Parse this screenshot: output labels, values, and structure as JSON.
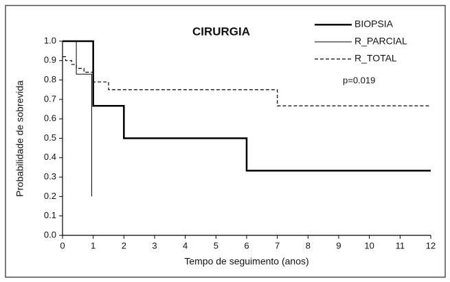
{
  "chart_data": {
    "type": "step",
    "title": "CIRURGIA",
    "annotation": "p=0.019",
    "x_label": "Tempo de seguimento (anos)",
    "y_label": "Probabilidade de sobrevida",
    "xlim": [
      0,
      12
    ],
    "ylim": [
      0,
      1
    ],
    "xticks": [
      0,
      1,
      2,
      3,
      4,
      5,
      6,
      7,
      8,
      9,
      10,
      11,
      12
    ],
    "yticks": [
      {
        "value": 0,
        "label": "0.0"
      },
      {
        "value": 0.1,
        "label": "0.1"
      },
      {
        "value": 0.2,
        "label": "0.2"
      },
      {
        "value": 0.3,
        "label": "0.3"
      },
      {
        "value": 0.4,
        "label": "0.4"
      },
      {
        "value": 0.5,
        "label": "0.5"
      },
      {
        "value": 0.6,
        "label": "0.6"
      },
      {
        "value": 0.7,
        "label": "0.7"
      },
      {
        "value": 0.8,
        "label": "0.8"
      },
      {
        "value": 0.9,
        "label": "0.9"
      },
      {
        "value": 1,
        "label": "1.0"
      }
    ],
    "series": [
      {
        "name": "BIOPSIA",
        "color": "#000000",
        "linewidth": 2.5,
        "linestyle": "solid",
        "x": [
          0,
          1,
          1,
          2,
          2,
          6,
          6,
          12
        ],
        "values": [
          1,
          1,
          0.667,
          0.667,
          0.5,
          0.5,
          0.333,
          0.333
        ]
      },
      {
        "name": "R_PARCIAL",
        "color": "#000000",
        "linewidth": 1,
        "linestyle": "solid",
        "x": [
          0,
          0.45,
          0.45,
          0.95,
          0.95
        ],
        "values": [
          1,
          1,
          0.83,
          0.83,
          0.2
        ]
      },
      {
        "name": "R_TOTAL",
        "color": "#000000",
        "linewidth": 1.2,
        "linestyle": "dashed",
        "x": [
          0,
          0.1,
          0.1,
          0.3,
          0.3,
          0.45,
          0.45,
          0.7,
          0.7,
          1,
          1,
          1.5,
          1.5,
          7,
          7,
          12
        ],
        "values": [
          0.92,
          0.92,
          0.9,
          0.9,
          0.88,
          0.88,
          0.86,
          0.86,
          0.84,
          0.84,
          0.79,
          0.79,
          0.75,
          0.75,
          0.667,
          0.667
        ]
      }
    ]
  }
}
